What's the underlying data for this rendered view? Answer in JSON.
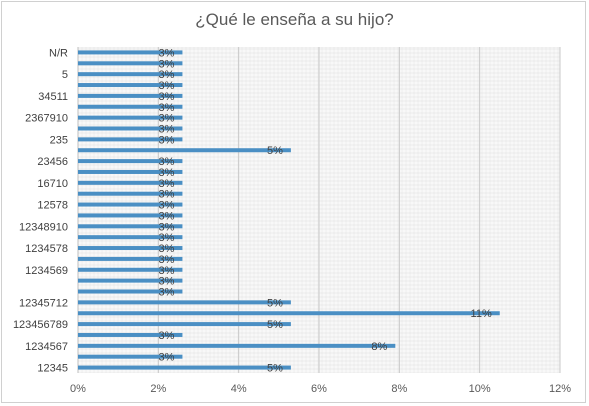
{
  "chart_data": {
    "type": "bar",
    "orientation": "horizontal",
    "title": "¿Qué le enseña a su hijo?",
    "xlabel": "",
    "ylabel": "",
    "xlim": [
      0,
      12
    ],
    "x_ticks": [
      "0%",
      "2%",
      "4%",
      "6%",
      "8%",
      "10%",
      "12%"
    ],
    "grid": true,
    "legend": "none",
    "bar_color": "#4a8fc4",
    "categories": [
      "12345",
      "",
      "1234567",
      "",
      "123456789",
      "",
      "12345712",
      "",
      "",
      "1234569",
      "",
      "1234578",
      "",
      "12348910",
      "",
      "12578",
      "",
      "16710",
      "",
      "23456",
      "",
      "235",
      "",
      "2367910",
      "",
      "34511",
      "",
      "5",
      "",
      "N/R"
    ],
    "values": [
      5.3,
      2.6,
      7.9,
      2.6,
      5.3,
      10.5,
      5.3,
      2.6,
      2.6,
      2.6,
      2.6,
      2.6,
      2.6,
      2.6,
      2.6,
      2.6,
      2.6,
      2.6,
      2.6,
      2.6,
      5.3,
      2.6,
      2.6,
      2.6,
      2.6,
      2.6,
      2.6,
      2.6,
      2.6,
      2.6
    ],
    "data_labels": [
      "5%",
      "3%",
      "8%",
      "3%",
      "5%",
      "11%",
      "5%",
      "3%",
      "3%",
      "3%",
      "3%",
      "3%",
      "3%",
      "3%",
      "3%",
      "3%",
      "3%",
      "3%",
      "3%",
      "3%",
      "5%",
      "3%",
      "3%",
      "3%",
      "3%",
      "3%",
      "3%",
      "3%",
      "3%",
      "3%"
    ]
  }
}
